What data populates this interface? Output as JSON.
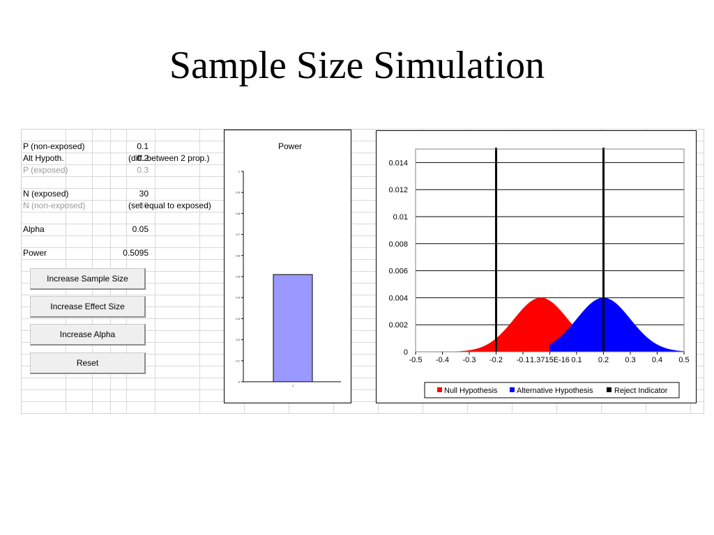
{
  "title": "Sample Size Simulation",
  "params": {
    "p_nonexposed": {
      "label": "P (non-exposed)",
      "value": "0.1"
    },
    "alt_hypoth": {
      "label": "Alt Hypoth.",
      "value": "0.2",
      "note": "(diff. between 2 prop.)"
    },
    "p_exposed": {
      "label": "P (exposed)",
      "value": "0.3"
    },
    "n_exposed": {
      "label": "N (exposed)",
      "value": "30"
    },
    "n_nonexposed": {
      "label": "N (non-exposed)",
      "value": "30",
      "note": "(set equal to exposed)"
    },
    "alpha": {
      "label": "Alpha",
      "value": "0.05"
    },
    "power": {
      "label": "Power",
      "value": "0.5095"
    }
  },
  "buttons": {
    "increase_sample": "Increase Sample Size",
    "increase_effect": "Increase Effect Size",
    "increase_alpha": "Increase Alpha",
    "reset": "Reset"
  },
  "colors": {
    "power_bar": "#9999ff",
    "null": "#ff0000",
    "alternative": "#0000ff",
    "reject": "#000000"
  },
  "chart_data": [
    {
      "type": "bar",
      "title": "Power",
      "categories": [
        "1"
      ],
      "values": [
        0.5095
      ],
      "ylim": [
        0,
        1
      ],
      "yticks": [
        "0",
        "0.1",
        "0.2",
        "0.3",
        "0.4",
        "0.5",
        "0.6",
        "0.7",
        "0.8",
        "0.9",
        "1"
      ],
      "grid": false
    },
    {
      "type": "area",
      "xlim": [
        -0.5,
        0.5
      ],
      "ylim": [
        0,
        0.015
      ],
      "xticks": [
        "-0.5",
        "-0.4",
        "-0.3",
        "-0.2",
        "-0.1",
        "1.3715E-16",
        "0.1",
        "0.2",
        "0.3",
        "0.4",
        "0.5"
      ],
      "yticks": [
        "0",
        "0.002",
        "0.004",
        "0.006",
        "0.008",
        "0.01",
        "0.012",
        "0.014"
      ],
      "grid": true,
      "legend_position": "bottom",
      "series": [
        {
          "name": "Null Hypothesis",
          "distribution": "normal",
          "mean": -0.0333,
          "sd": 0.1,
          "peak": 0.004,
          "x_min": -0.5,
          "x_max": 0.2
        },
        {
          "name": "Alternative Hypothesis",
          "distribution": "normal",
          "mean": 0.2,
          "sd": 0.1,
          "peak": 0.004,
          "x_min": 0.0,
          "x_max": 0.5
        },
        {
          "name": "Reject Indicator",
          "x": [
            -0.2,
            0.2
          ]
        }
      ]
    }
  ]
}
